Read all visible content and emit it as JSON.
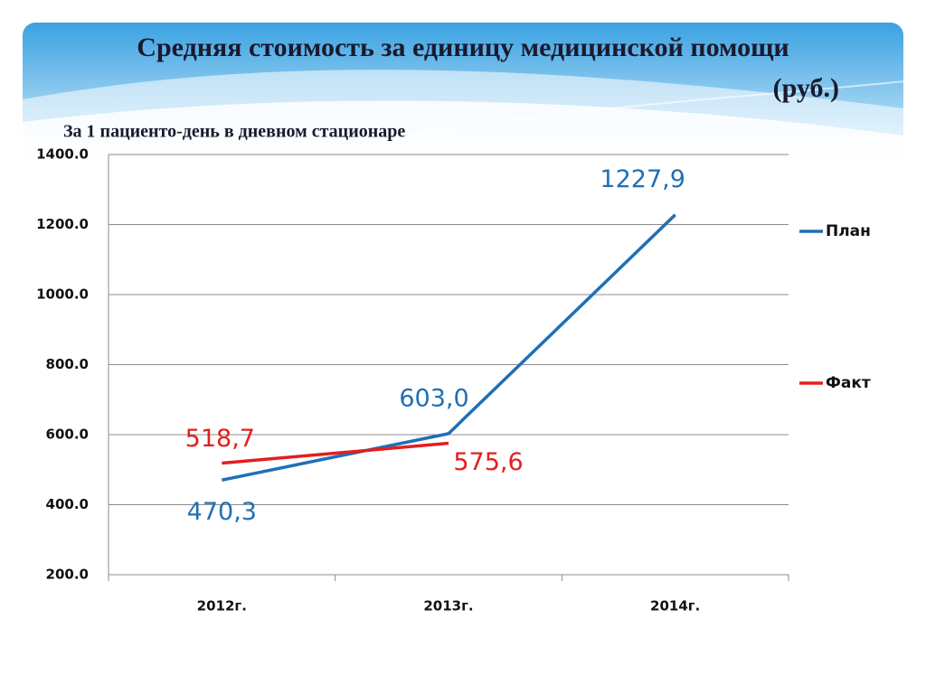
{
  "chart_data": {
    "type": "line",
    "title": "Средняя стоимость за единицу медицинской помощи",
    "title_line2": "(руб.)",
    "subtitle": "За 1 пациенто-день в дневном стационаре",
    "categories": [
      "2012г.",
      "2013г.",
      "2014г."
    ],
    "series": [
      {
        "name": "План",
        "color": "#1f6fb5",
        "values": [
          470.3,
          603.0,
          1227.9
        ],
        "value_labels": [
          "470,3",
          "603,0",
          "1227,9"
        ]
      },
      {
        "name": "Факт",
        "color": "#e31e1e",
        "values": [
          518.7,
          575.6,
          null
        ],
        "value_labels": [
          "518,7",
          "575,6",
          null
        ]
      }
    ],
    "ylim": [
      200,
      1400
    ],
    "yticks": [
      {
        "value": 200,
        "label": "200.0"
      },
      {
        "value": 400,
        "label": "400.0"
      },
      {
        "value": 600,
        "label": "600.0"
      },
      {
        "value": 800,
        "label": "800.0"
      },
      {
        "value": 1000,
        "label": "1000.0"
      },
      {
        "value": 1200,
        "label": "1200.0"
      },
      {
        "value": 1400,
        "label": "1400.0"
      }
    ],
    "grid": true,
    "legend": "right"
  }
}
